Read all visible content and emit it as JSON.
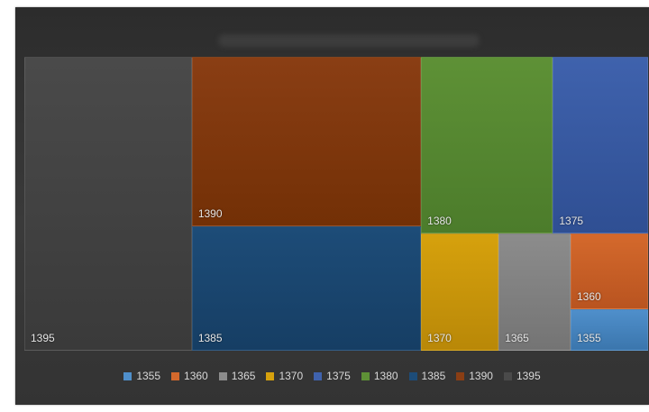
{
  "chart_data": {
    "type": "treemap",
    "title": "",
    "legend_position": "bottom",
    "series": [
      {
        "name": "1395",
        "value": 38,
        "color": "#4a4a4a",
        "colorDark": "#3a3a3a"
      },
      {
        "name": "1390",
        "value": 30,
        "color": "#8a3e14",
        "colorDark": "#733006"
      },
      {
        "name": "1385",
        "value": 22,
        "color": "#1d4c78",
        "colorDark": "#163e64"
      },
      {
        "name": "1380",
        "value": 18,
        "color": "#5e9136",
        "colorDark": "#4c7c2b"
      },
      {
        "name": "1375",
        "value": 13,
        "color": "#3f62ad",
        "colorDark": "#2f4f93"
      },
      {
        "name": "1370",
        "value": 7,
        "color": "#d6a10d",
        "colorDark": "#b98808"
      },
      {
        "name": "1365",
        "value": 6.5,
        "color": "#8c8c8c",
        "colorDark": "#747474"
      },
      {
        "name": "1360",
        "value": 4.5,
        "color": "#d4692c",
        "colorDark": "#b95420"
      },
      {
        "name": "1355",
        "value": 2.5,
        "color": "#4f8fcb",
        "colorDark": "#3b76ad"
      }
    ],
    "legend_order": [
      "1355",
      "1360",
      "1365",
      "1370",
      "1375",
      "1380",
      "1385",
      "1390",
      "1395"
    ]
  }
}
